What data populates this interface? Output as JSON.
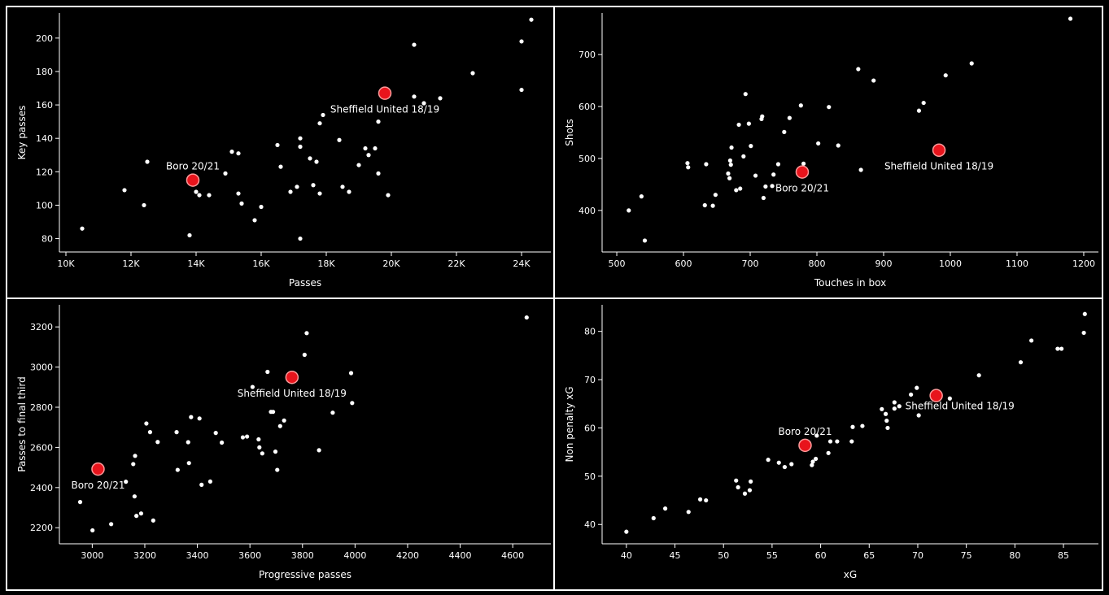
{
  "colors": {
    "background": "#000000",
    "foreground": "#ffffff",
    "highlight": "#e8141c",
    "highlight_stroke": "#ff9a9a"
  },
  "chart_data": [
    {
      "type": "scatter",
      "title": "",
      "xlabel": "Passes",
      "ylabel": "Key passes",
      "xlim": [
        9800,
        24900
      ],
      "ylim": [
        72,
        215
      ],
      "xticks": [
        10000,
        12000,
        14000,
        16000,
        18000,
        20000,
        22000,
        24000
      ],
      "xtick_labels": [
        "10K",
        "12K",
        "14K",
        "16K",
        "18K",
        "20K",
        "22K",
        "24K"
      ],
      "yticks": [
        80,
        100,
        120,
        140,
        160,
        180,
        200
      ],
      "ytick_labels": [
        "80",
        "100",
        "120",
        "140",
        "160",
        "180",
        "200"
      ],
      "points": [
        [
          10500,
          86
        ],
        [
          11800,
          109
        ],
        [
          12400,
          100
        ],
        [
          12500,
          126
        ],
        [
          13800,
          82
        ],
        [
          14000,
          108
        ],
        [
          14100,
          106
        ],
        [
          14400,
          106
        ],
        [
          14900,
          119
        ],
        [
          15100,
          132
        ],
        [
          15300,
          131
        ],
        [
          15300,
          107
        ],
        [
          15400,
          101
        ],
        [
          15800,
          91
        ],
        [
          16000,
          99
        ],
        [
          16500,
          136
        ],
        [
          16600,
          123
        ],
        [
          16900,
          108
        ],
        [
          17100,
          111
        ],
        [
          17200,
          135
        ],
        [
          17200,
          140
        ],
        [
          17200,
          80
        ],
        [
          17500,
          128
        ],
        [
          17600,
          112
        ],
        [
          17700,
          126
        ],
        [
          17800,
          149
        ],
        [
          17800,
          107
        ],
        [
          17900,
          154
        ],
        [
          18400,
          139
        ],
        [
          18500,
          111
        ],
        [
          18700,
          108
        ],
        [
          19000,
          124
        ],
        [
          19200,
          134
        ],
        [
          19300,
          130
        ],
        [
          19500,
          134
        ],
        [
          19600,
          150
        ],
        [
          19600,
          119
        ],
        [
          19900,
          106
        ],
        [
          20700,
          165
        ],
        [
          20700,
          196
        ],
        [
          21000,
          161
        ],
        [
          21500,
          164
        ],
        [
          22500,
          179
        ],
        [
          24000,
          198
        ],
        [
          24000,
          169
        ],
        [
          24300,
          211
        ]
      ],
      "highlights": [
        {
          "label": "Boro 20/21",
          "x": 13900,
          "y": 115,
          "anchor": "top-center"
        },
        {
          "label": "Sheffield United 18/19",
          "x": 19800,
          "y": 167,
          "anchor": "bottom-center"
        }
      ]
    },
    {
      "type": "scatter",
      "title": "",
      "xlabel": "Touches in box",
      "ylabel": "Shots",
      "xlim": [
        478,
        1222
      ],
      "ylim": [
        320,
        780
      ],
      "xticks": [
        500,
        600,
        700,
        800,
        900,
        1000,
        1100,
        1200
      ],
      "xtick_labels": [
        "500",
        "600",
        "700",
        "800",
        "900",
        "1000",
        "1100",
        "1200"
      ],
      "yticks": [
        400,
        500,
        600,
        700
      ],
      "ytick_labels": [
        "400",
        "500",
        "600",
        "700"
      ],
      "points": [
        [
          518,
          400
        ],
        [
          537,
          427
        ],
        [
          542,
          342
        ],
        [
          606,
          491
        ],
        [
          607,
          483
        ],
        [
          632,
          410
        ],
        [
          634,
          489
        ],
        [
          644,
          409
        ],
        [
          648,
          430
        ],
        [
          667,
          471
        ],
        [
          669,
          462
        ],
        [
          670,
          496
        ],
        [
          671,
          488
        ],
        [
          672,
          521
        ],
        [
          679,
          439
        ],
        [
          683,
          565
        ],
        [
          685,
          442
        ],
        [
          690,
          504
        ],
        [
          693,
          624
        ],
        [
          698,
          567
        ],
        [
          701,
          524
        ],
        [
          708,
          467
        ],
        [
          717,
          576
        ],
        [
          718,
          581
        ],
        [
          720,
          424
        ],
        [
          723,
          446
        ],
        [
          733,
          447
        ],
        [
          735,
          469
        ],
        [
          742,
          489
        ],
        [
          751,
          551
        ],
        [
          759,
          578
        ],
        [
          776,
          602
        ],
        [
          780,
          490
        ],
        [
          802,
          529
        ],
        [
          818,
          599
        ],
        [
          832,
          525
        ],
        [
          862,
          672
        ],
        [
          866,
          478
        ],
        [
          885,
          650
        ],
        [
          953,
          592
        ],
        [
          960,
          607
        ],
        [
          993,
          660
        ],
        [
          1032,
          683
        ],
        [
          1180,
          769
        ]
      ],
      "highlights": [
        {
          "label": "Boro 20/21",
          "x": 778,
          "y": 474,
          "anchor": "bottom-center"
        },
        {
          "label": "Sheffield United 18/19",
          "x": 983,
          "y": 516,
          "anchor": "bottom-center"
        }
      ]
    },
    {
      "type": "scatter",
      "title": "",
      "xlabel": "Progressive passes",
      "ylabel": "Passes to final third",
      "xlim": [
        2875,
        4745
      ],
      "ylim": [
        2120,
        3310
      ],
      "xticks": [
        3000,
        3200,
        3400,
        3600,
        3800,
        4000,
        4200,
        4400,
        4600
      ],
      "xtick_labels": [
        "3000",
        "3200",
        "3400",
        "3600",
        "3800",
        "4000",
        "4200",
        "4400",
        "4600"
      ],
      "yticks": [
        2200,
        2400,
        2600,
        2800,
        3000,
        3200
      ],
      "ytick_labels": [
        "2200",
        "2400",
        "2600",
        "2800",
        "3000",
        "3200"
      ],
      "points": [
        [
          2954,
          2328
        ],
        [
          3001,
          2187
        ],
        [
          3072,
          2218
        ],
        [
          3128,
          2429
        ],
        [
          3156,
          2517
        ],
        [
          3161,
          2356
        ],
        [
          3163,
          2558
        ],
        [
          3168,
          2259
        ],
        [
          3186,
          2271
        ],
        [
          3206,
          2719
        ],
        [
          3220,
          2676
        ],
        [
          3232,
          2236
        ],
        [
          3249,
          2627
        ],
        [
          3321,
          2676
        ],
        [
          3325,
          2488
        ],
        [
          3365,
          2626
        ],
        [
          3368,
          2522
        ],
        [
          3376,
          2751
        ],
        [
          3408,
          2744
        ],
        [
          3416,
          2414
        ],
        [
          3449,
          2430
        ],
        [
          3470,
          2672
        ],
        [
          3493,
          2624
        ],
        [
          3573,
          2650
        ],
        [
          3589,
          2654
        ],
        [
          3610,
          2901
        ],
        [
          3633,
          2640
        ],
        [
          3636,
          2600
        ],
        [
          3647,
          2570
        ],
        [
          3667,
          2976
        ],
        [
          3680,
          2777
        ],
        [
          3688,
          2777
        ],
        [
          3697,
          2579
        ],
        [
          3704,
          2488
        ],
        [
          3715,
          2706
        ],
        [
          3730,
          2734
        ],
        [
          3808,
          3061
        ],
        [
          3816,
          3169
        ],
        [
          3863,
          2586
        ],
        [
          3915,
          2773
        ],
        [
          3985,
          2970
        ],
        [
          3989,
          2821
        ],
        [
          4653,
          3247
        ]
      ],
      "highlights": [
        {
          "label": "Boro 20/21",
          "x": 3022,
          "y": 2492,
          "anchor": "bottom-center"
        },
        {
          "label": "Sheffield United 18/19",
          "x": 3760,
          "y": 2949,
          "anchor": "bottom-center"
        }
      ]
    },
    {
      "type": "scatter",
      "title": "",
      "xlabel": "xG",
      "ylabel": "Non penalty xG",
      "xlim": [
        37.5,
        88.6
      ],
      "ylim": [
        36,
        85.5
      ],
      "xticks": [
        40,
        45,
        50,
        55,
        60,
        65,
        70,
        75,
        80,
        85
      ],
      "xtick_labels": [
        "40",
        "45",
        "50",
        "55",
        "60",
        "65",
        "70",
        "75",
        "80",
        "85"
      ],
      "yticks": [
        40,
        50,
        60,
        70,
        80
      ],
      "ytick_labels": [
        "40",
        "50",
        "60",
        "70",
        "80"
      ],
      "points": [
        [
          40.0,
          38.5
        ],
        [
          42.8,
          41.3
        ],
        [
          44.0,
          43.3
        ],
        [
          46.4,
          42.6
        ],
        [
          47.6,
          45.2
        ],
        [
          48.2,
          45.0
        ],
        [
          51.3,
          49.1
        ],
        [
          51.5,
          47.7
        ],
        [
          52.2,
          46.4
        ],
        [
          52.7,
          47.1
        ],
        [
          52.8,
          48.9
        ],
        [
          54.6,
          53.4
        ],
        [
          55.7,
          52.8
        ],
        [
          56.3,
          51.9
        ],
        [
          57.0,
          52.5
        ],
        [
          59.1,
          52.3
        ],
        [
          59.2,
          53.0
        ],
        [
          59.5,
          53.6
        ],
        [
          59.6,
          58.4
        ],
        [
          60.8,
          54.8
        ],
        [
          61.0,
          57.2
        ],
        [
          61.7,
          57.2
        ],
        [
          63.2,
          57.2
        ],
        [
          63.3,
          60.2
        ],
        [
          64.3,
          60.4
        ],
        [
          66.3,
          63.9
        ],
        [
          66.7,
          62.9
        ],
        [
          66.8,
          61.5
        ],
        [
          66.9,
          60.0
        ],
        [
          67.6,
          65.3
        ],
        [
          67.6,
          64.0
        ],
        [
          68.1,
          64.5
        ],
        [
          69.3,
          66.9
        ],
        [
          69.9,
          68.3
        ],
        [
          70.1,
          62.6
        ],
        [
          73.3,
          66.1
        ],
        [
          76.3,
          70.9
        ],
        [
          80.6,
          73.6
        ],
        [
          81.7,
          78.1
        ],
        [
          84.4,
          76.4
        ],
        [
          84.8,
          76.4
        ],
        [
          87.1,
          79.7
        ],
        [
          87.2,
          83.6
        ]
      ],
      "highlights": [
        {
          "label": "Boro 20/21",
          "x": 58.4,
          "y": 56.4,
          "anchor": "top-center"
        },
        {
          "label": "Sheffield United 18/19",
          "x": 71.9,
          "y": 66.7,
          "anchor": "bottom-right"
        }
      ]
    }
  ]
}
